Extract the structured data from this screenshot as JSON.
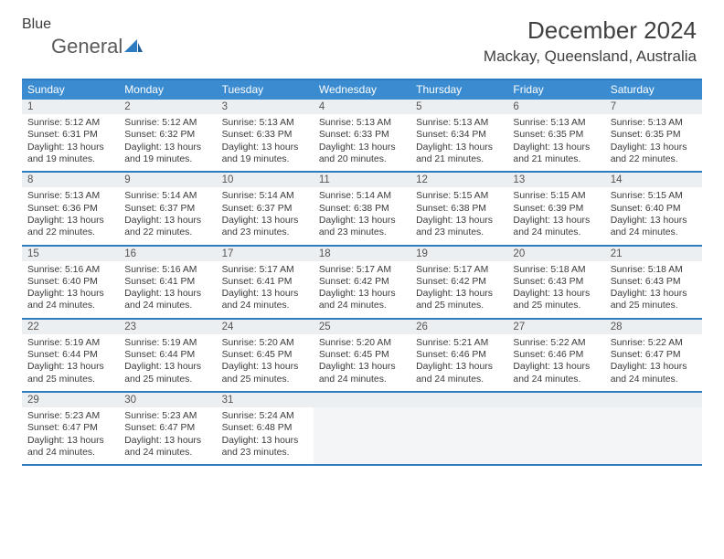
{
  "brand": {
    "part1": "General",
    "part2": "Blue"
  },
  "title": "December 2024",
  "subtitle": "Mackay, Queensland, Australia",
  "colors": {
    "header_bg": "#3a8bd0",
    "header_text": "#ffffff",
    "border": "#2d7bc0",
    "daynum_bg": "#eceff1",
    "text": "#3a3a3a",
    "logo_blue": "#2d7bc0"
  },
  "dow": [
    "Sunday",
    "Monday",
    "Tuesday",
    "Wednesday",
    "Thursday",
    "Friday",
    "Saturday"
  ],
  "weeks": [
    [
      {
        "n": "1",
        "sr": "Sunrise: 5:12 AM",
        "ss": "Sunset: 6:31 PM",
        "d1": "Daylight: 13 hours",
        "d2": "and 19 minutes."
      },
      {
        "n": "2",
        "sr": "Sunrise: 5:12 AM",
        "ss": "Sunset: 6:32 PM",
        "d1": "Daylight: 13 hours",
        "d2": "and 19 minutes."
      },
      {
        "n": "3",
        "sr": "Sunrise: 5:13 AM",
        "ss": "Sunset: 6:33 PM",
        "d1": "Daylight: 13 hours",
        "d2": "and 19 minutes."
      },
      {
        "n": "4",
        "sr": "Sunrise: 5:13 AM",
        "ss": "Sunset: 6:33 PM",
        "d1": "Daylight: 13 hours",
        "d2": "and 20 minutes."
      },
      {
        "n": "5",
        "sr": "Sunrise: 5:13 AM",
        "ss": "Sunset: 6:34 PM",
        "d1": "Daylight: 13 hours",
        "d2": "and 21 minutes."
      },
      {
        "n": "6",
        "sr": "Sunrise: 5:13 AM",
        "ss": "Sunset: 6:35 PM",
        "d1": "Daylight: 13 hours",
        "d2": "and 21 minutes."
      },
      {
        "n": "7",
        "sr": "Sunrise: 5:13 AM",
        "ss": "Sunset: 6:35 PM",
        "d1": "Daylight: 13 hours",
        "d2": "and 22 minutes."
      }
    ],
    [
      {
        "n": "8",
        "sr": "Sunrise: 5:13 AM",
        "ss": "Sunset: 6:36 PM",
        "d1": "Daylight: 13 hours",
        "d2": "and 22 minutes."
      },
      {
        "n": "9",
        "sr": "Sunrise: 5:14 AM",
        "ss": "Sunset: 6:37 PM",
        "d1": "Daylight: 13 hours",
        "d2": "and 22 minutes."
      },
      {
        "n": "10",
        "sr": "Sunrise: 5:14 AM",
        "ss": "Sunset: 6:37 PM",
        "d1": "Daylight: 13 hours",
        "d2": "and 23 minutes."
      },
      {
        "n": "11",
        "sr": "Sunrise: 5:14 AM",
        "ss": "Sunset: 6:38 PM",
        "d1": "Daylight: 13 hours",
        "d2": "and 23 minutes."
      },
      {
        "n": "12",
        "sr": "Sunrise: 5:15 AM",
        "ss": "Sunset: 6:38 PM",
        "d1": "Daylight: 13 hours",
        "d2": "and 23 minutes."
      },
      {
        "n": "13",
        "sr": "Sunrise: 5:15 AM",
        "ss": "Sunset: 6:39 PM",
        "d1": "Daylight: 13 hours",
        "d2": "and 24 minutes."
      },
      {
        "n": "14",
        "sr": "Sunrise: 5:15 AM",
        "ss": "Sunset: 6:40 PM",
        "d1": "Daylight: 13 hours",
        "d2": "and 24 minutes."
      }
    ],
    [
      {
        "n": "15",
        "sr": "Sunrise: 5:16 AM",
        "ss": "Sunset: 6:40 PM",
        "d1": "Daylight: 13 hours",
        "d2": "and 24 minutes."
      },
      {
        "n": "16",
        "sr": "Sunrise: 5:16 AM",
        "ss": "Sunset: 6:41 PM",
        "d1": "Daylight: 13 hours",
        "d2": "and 24 minutes."
      },
      {
        "n": "17",
        "sr": "Sunrise: 5:17 AM",
        "ss": "Sunset: 6:41 PM",
        "d1": "Daylight: 13 hours",
        "d2": "and 24 minutes."
      },
      {
        "n": "18",
        "sr": "Sunrise: 5:17 AM",
        "ss": "Sunset: 6:42 PM",
        "d1": "Daylight: 13 hours",
        "d2": "and 24 minutes."
      },
      {
        "n": "19",
        "sr": "Sunrise: 5:17 AM",
        "ss": "Sunset: 6:42 PM",
        "d1": "Daylight: 13 hours",
        "d2": "and 25 minutes."
      },
      {
        "n": "20",
        "sr": "Sunrise: 5:18 AM",
        "ss": "Sunset: 6:43 PM",
        "d1": "Daylight: 13 hours",
        "d2": "and 25 minutes."
      },
      {
        "n": "21",
        "sr": "Sunrise: 5:18 AM",
        "ss": "Sunset: 6:43 PM",
        "d1": "Daylight: 13 hours",
        "d2": "and 25 minutes."
      }
    ],
    [
      {
        "n": "22",
        "sr": "Sunrise: 5:19 AM",
        "ss": "Sunset: 6:44 PM",
        "d1": "Daylight: 13 hours",
        "d2": "and 25 minutes."
      },
      {
        "n": "23",
        "sr": "Sunrise: 5:19 AM",
        "ss": "Sunset: 6:44 PM",
        "d1": "Daylight: 13 hours",
        "d2": "and 25 minutes."
      },
      {
        "n": "24",
        "sr": "Sunrise: 5:20 AM",
        "ss": "Sunset: 6:45 PM",
        "d1": "Daylight: 13 hours",
        "d2": "and 25 minutes."
      },
      {
        "n": "25",
        "sr": "Sunrise: 5:20 AM",
        "ss": "Sunset: 6:45 PM",
        "d1": "Daylight: 13 hours",
        "d2": "and 24 minutes."
      },
      {
        "n": "26",
        "sr": "Sunrise: 5:21 AM",
        "ss": "Sunset: 6:46 PM",
        "d1": "Daylight: 13 hours",
        "d2": "and 24 minutes."
      },
      {
        "n": "27",
        "sr": "Sunrise: 5:22 AM",
        "ss": "Sunset: 6:46 PM",
        "d1": "Daylight: 13 hours",
        "d2": "and 24 minutes."
      },
      {
        "n": "28",
        "sr": "Sunrise: 5:22 AM",
        "ss": "Sunset: 6:47 PM",
        "d1": "Daylight: 13 hours",
        "d2": "and 24 minutes."
      }
    ],
    [
      {
        "n": "29",
        "sr": "Sunrise: 5:23 AM",
        "ss": "Sunset: 6:47 PM",
        "d1": "Daylight: 13 hours",
        "d2": "and 24 minutes."
      },
      {
        "n": "30",
        "sr": "Sunrise: 5:23 AM",
        "ss": "Sunset: 6:47 PM",
        "d1": "Daylight: 13 hours",
        "d2": "and 24 minutes."
      },
      {
        "n": "31",
        "sr": "Sunrise: 5:24 AM",
        "ss": "Sunset: 6:48 PM",
        "d1": "Daylight: 13 hours",
        "d2": "and 23 minutes."
      },
      null,
      null,
      null,
      null
    ]
  ]
}
